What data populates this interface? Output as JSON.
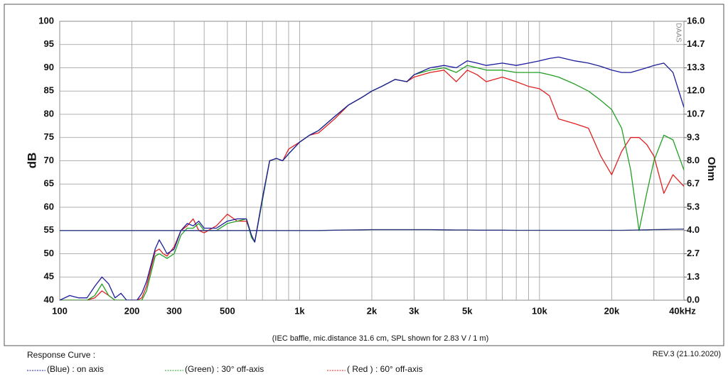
{
  "chart_data": {
    "type": "line",
    "y_label": "dB",
    "y2_label": "Ohm",
    "note": "(IEC baffle, mic.distance 31.6 cm, SPL shown for 2.83 V / 1 m)",
    "revision": "REV.3 (21.10.2020)",
    "watermark": "DAAS",
    "legend_title": "Response Curve :",
    "log_x": true,
    "grid": true,
    "xlim": [
      100,
      40000
    ],
    "ylim": [
      40,
      100
    ],
    "y2lim": [
      0,
      16
    ],
    "xticks": [
      100,
      200,
      300,
      500,
      {
        "value": 1000,
        "label": "1k"
      },
      {
        "value": 2000,
        "label": "2k"
      },
      {
        "value": 3000,
        "label": "3k"
      },
      {
        "value": 5000,
        "label": "5k"
      },
      {
        "value": 10000,
        "label": "10k"
      },
      {
        "value": 20000,
        "label": "20k"
      },
      {
        "value": 40000,
        "label": "40kHz"
      }
    ],
    "xgrid": [
      400,
      600,
      700,
      800,
      900,
      4000,
      6000,
      7000,
      8000,
      9000,
      30000
    ],
    "yticks": [
      40,
      45,
      50,
      55,
      60,
      65,
      70,
      75,
      80,
      85,
      90,
      95,
      100
    ],
    "y2ticks": [
      {
        "value": 0,
        "label": "0.0"
      },
      {
        "value": 1.33,
        "label": "1.3"
      },
      {
        "value": 2.67,
        "label": "2.7"
      },
      {
        "value": 4,
        "label": "4.0"
      },
      {
        "value": 5.33,
        "label": "5.3"
      },
      {
        "value": 6.67,
        "label": "6.7"
      },
      {
        "value": 8,
        "label": "8.0"
      },
      {
        "value": 9.33,
        "label": "9.3"
      },
      {
        "value": 10.67,
        "label": "10.7"
      },
      {
        "value": 12,
        "label": "12.0"
      },
      {
        "value": 13.33,
        "label": "13.3"
      },
      {
        "value": 14.67,
        "label": "14.7"
      },
      {
        "value": 16,
        "label": "16.0"
      }
    ],
    "x": [
      100,
      110,
      120,
      130,
      140,
      150,
      160,
      170,
      180,
      190,
      200,
      210,
      220,
      230,
      250,
      260,
      270,
      280,
      300,
      320,
      340,
      360,
      380,
      400,
      450,
      500,
      550,
      600,
      630,
      650,
      700,
      750,
      800,
      850,
      900,
      1000,
      1100,
      1200,
      1400,
      1600,
      1800,
      2000,
      2200,
      2500,
      2800,
      3000,
      3500,
      4000,
      4500,
      5000,
      5500,
      6000,
      7000,
      8000,
      9000,
      10000,
      11000,
      12000,
      14000,
      16000,
      18000,
      20000,
      22000,
      24000,
      26000,
      28000,
      30000,
      33000,
      36000,
      40000
    ],
    "series": [
      {
        "name": "( Red ) : 60° off-axis",
        "color": "#e02020",
        "values": [
          40,
          40,
          40,
          40,
          40.5,
          42,
          41,
          40,
          40,
          40,
          40,
          40,
          40.5,
          43,
          50.5,
          51,
          50,
          49.5,
          51.5,
          55,
          56,
          57.5,
          55,
          54.5,
          56,
          58.5,
          57,
          57,
          54,
          52.5,
          62,
          70,
          70.5,
          70,
          72.5,
          74,
          75.5,
          76,
          79,
          82,
          83.5,
          85,
          86,
          87.5,
          87,
          88,
          89,
          89.5,
          87,
          89.5,
          88.5,
          87,
          88,
          87,
          86,
          85.5,
          84,
          79,
          78,
          77,
          71,
          67,
          72,
          75,
          75,
          73.5,
          71,
          63,
          67,
          64.5
        ]
      },
      {
        "name": "(Green) : 30° off-axis",
        "color": "#22a022",
        "values": [
          40,
          40,
          40,
          40,
          41,
          43.5,
          41,
          40,
          40,
          40,
          40,
          40,
          40,
          42,
          49.5,
          50,
          49.5,
          49,
          50,
          54,
          55.5,
          55.5,
          56.5,
          55,
          55,
          56.5,
          57,
          57.5,
          53.5,
          52.5,
          61.5,
          70,
          70.5,
          70,
          71.5,
          74,
          75.5,
          76.5,
          79.5,
          82,
          83.5,
          85,
          86,
          87.5,
          87,
          88.5,
          89.5,
          90,
          89,
          90.5,
          90,
          89.5,
          89.5,
          89,
          89,
          89,
          88.5,
          88,
          86.5,
          85,
          83,
          81,
          77,
          68,
          55,
          63,
          70,
          75.5,
          74.5,
          68
        ]
      },
      {
        "name": "(Blue) : on axis",
        "color": "#1c1c9c",
        "values": [
          40,
          41,
          40.5,
          40.5,
          43,
          45,
          43.5,
          40.5,
          41.5,
          40,
          40,
          40,
          41.5,
          44,
          51,
          53,
          51.5,
          50,
          51,
          55,
          56.5,
          56,
          57,
          55.5,
          55.5,
          57,
          57.5,
          57.5,
          54,
          52.5,
          62,
          70,
          70.5,
          70,
          71.5,
          74,
          75.5,
          76.5,
          79.5,
          82,
          83.5,
          85,
          86,
          87.5,
          87,
          88.5,
          90,
          90.5,
          90,
          91.5,
          91,
          90.5,
          91,
          90.5,
          91,
          91.5,
          92,
          92.3,
          91.5,
          91,
          90.3,
          89.5,
          89,
          89,
          89.5,
          90,
          90.5,
          91,
          89,
          81.5
        ]
      },
      {
        "color": "#2a3580",
        "axis": "y2",
        "values": [
          4,
          4,
          4,
          4,
          4,
          4,
          4,
          4,
          4,
          4,
          4,
          4,
          4,
          4,
          4,
          4,
          4,
          4,
          4,
          4,
          4,
          4,
          4,
          4,
          4,
          4,
          4,
          4,
          4,
          4,
          4,
          4,
          4,
          4,
          4,
          4,
          4,
          4,
          4.02,
          4.03,
          4.04,
          4.05,
          4.05,
          4.05,
          4.05,
          4.05,
          4.05,
          4.04,
          4.03,
          4.03,
          4.02,
          4.02,
          4.02,
          4.01,
          4.01,
          4.01,
          4.01,
          4.01,
          4.01,
          4.01,
          4.01,
          4.01,
          4.01,
          4.02,
          4.03,
          4.04,
          4.05,
          4.06,
          4.07,
          4.08
        ]
      }
    ]
  }
}
